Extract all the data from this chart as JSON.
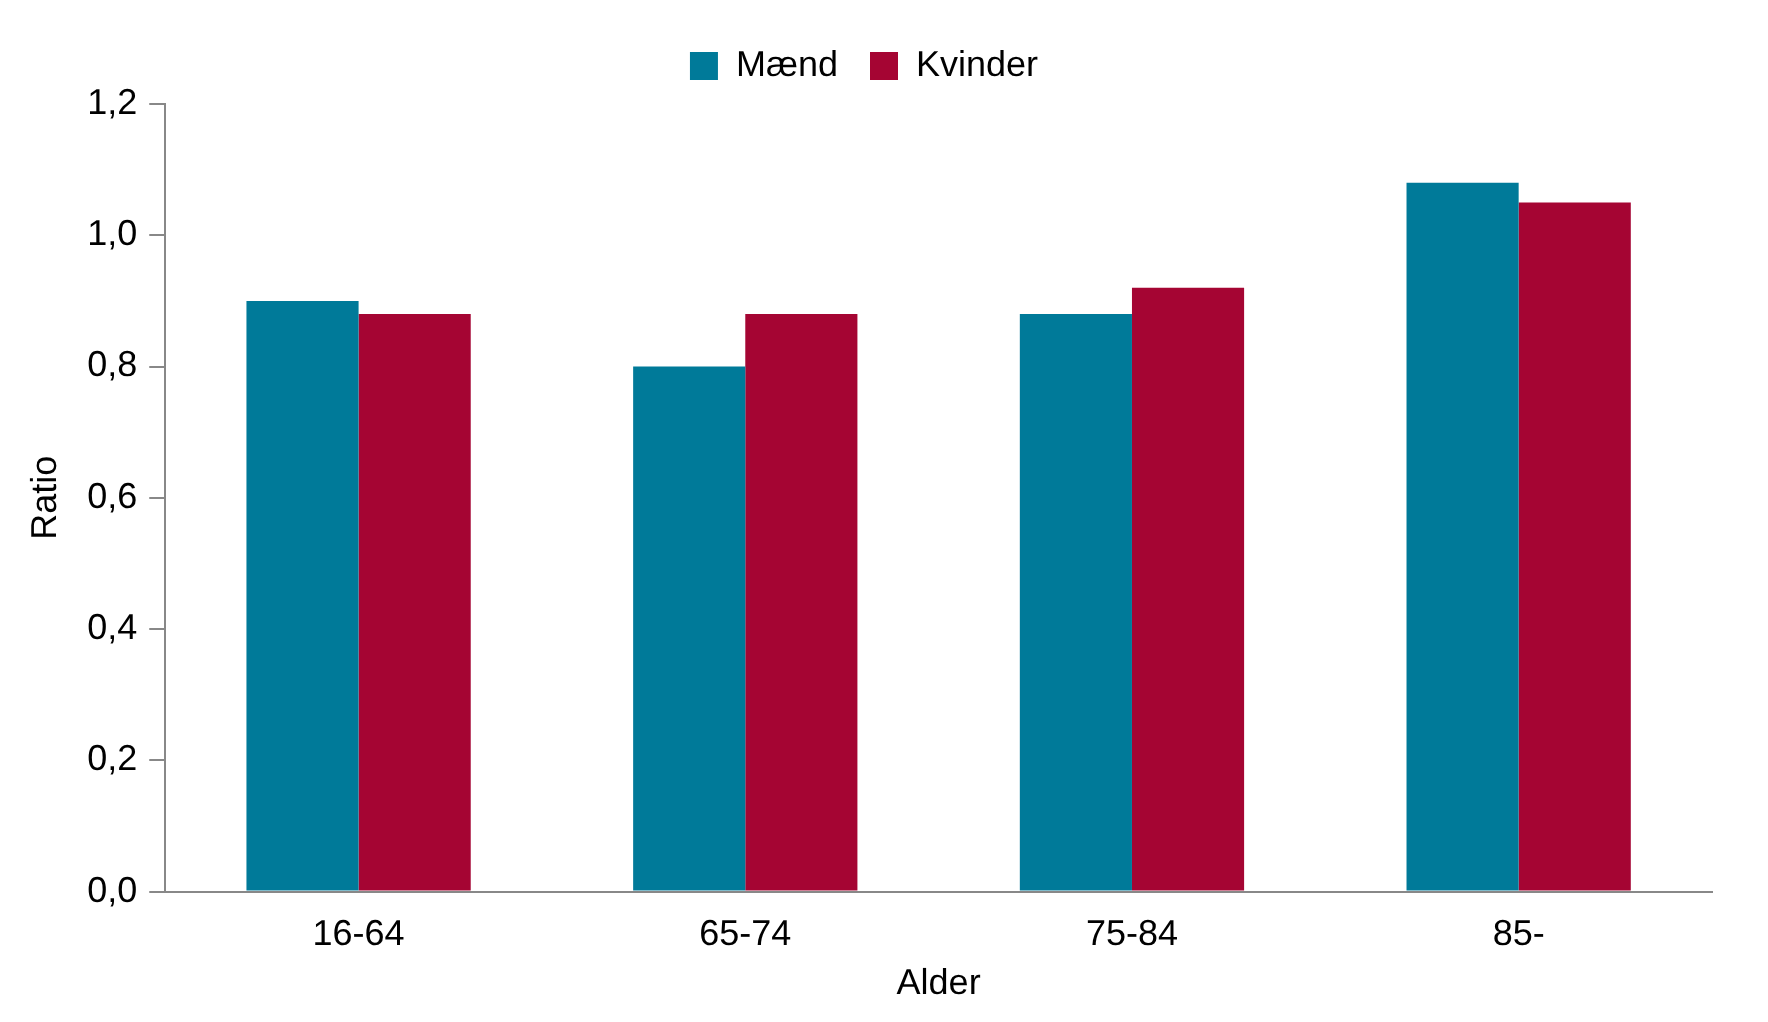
{
  "chart_data": {
    "type": "bar",
    "xlabel": "Alder",
    "ylabel": "Ratio",
    "categories": [
      "16-64",
      "65-74",
      "75-84",
      "85-"
    ],
    "series": [
      {
        "name": "Mænd",
        "color": "#007a99",
        "values": [
          0.9,
          0.8,
          0.88,
          1.08
        ]
      },
      {
        "name": "Kvinder",
        "color": "#a50533",
        "values": [
          0.88,
          0.88,
          0.92,
          1.05
        ]
      }
    ],
    "ylim": [
      0,
      1.2
    ],
    "yticks": [
      {
        "value": 0,
        "label": "0,0"
      },
      {
        "value": 0.2,
        "label": "0,2"
      },
      {
        "value": 0.4,
        "label": "0,4"
      },
      {
        "value": 0.6,
        "label": "0,6"
      },
      {
        "value": 0.8,
        "label": "0,8"
      },
      {
        "value": 1,
        "label": "1,0"
      },
      {
        "value": 1.2,
        "label": "1,2"
      }
    ],
    "grid": false,
    "legend": "top"
  }
}
